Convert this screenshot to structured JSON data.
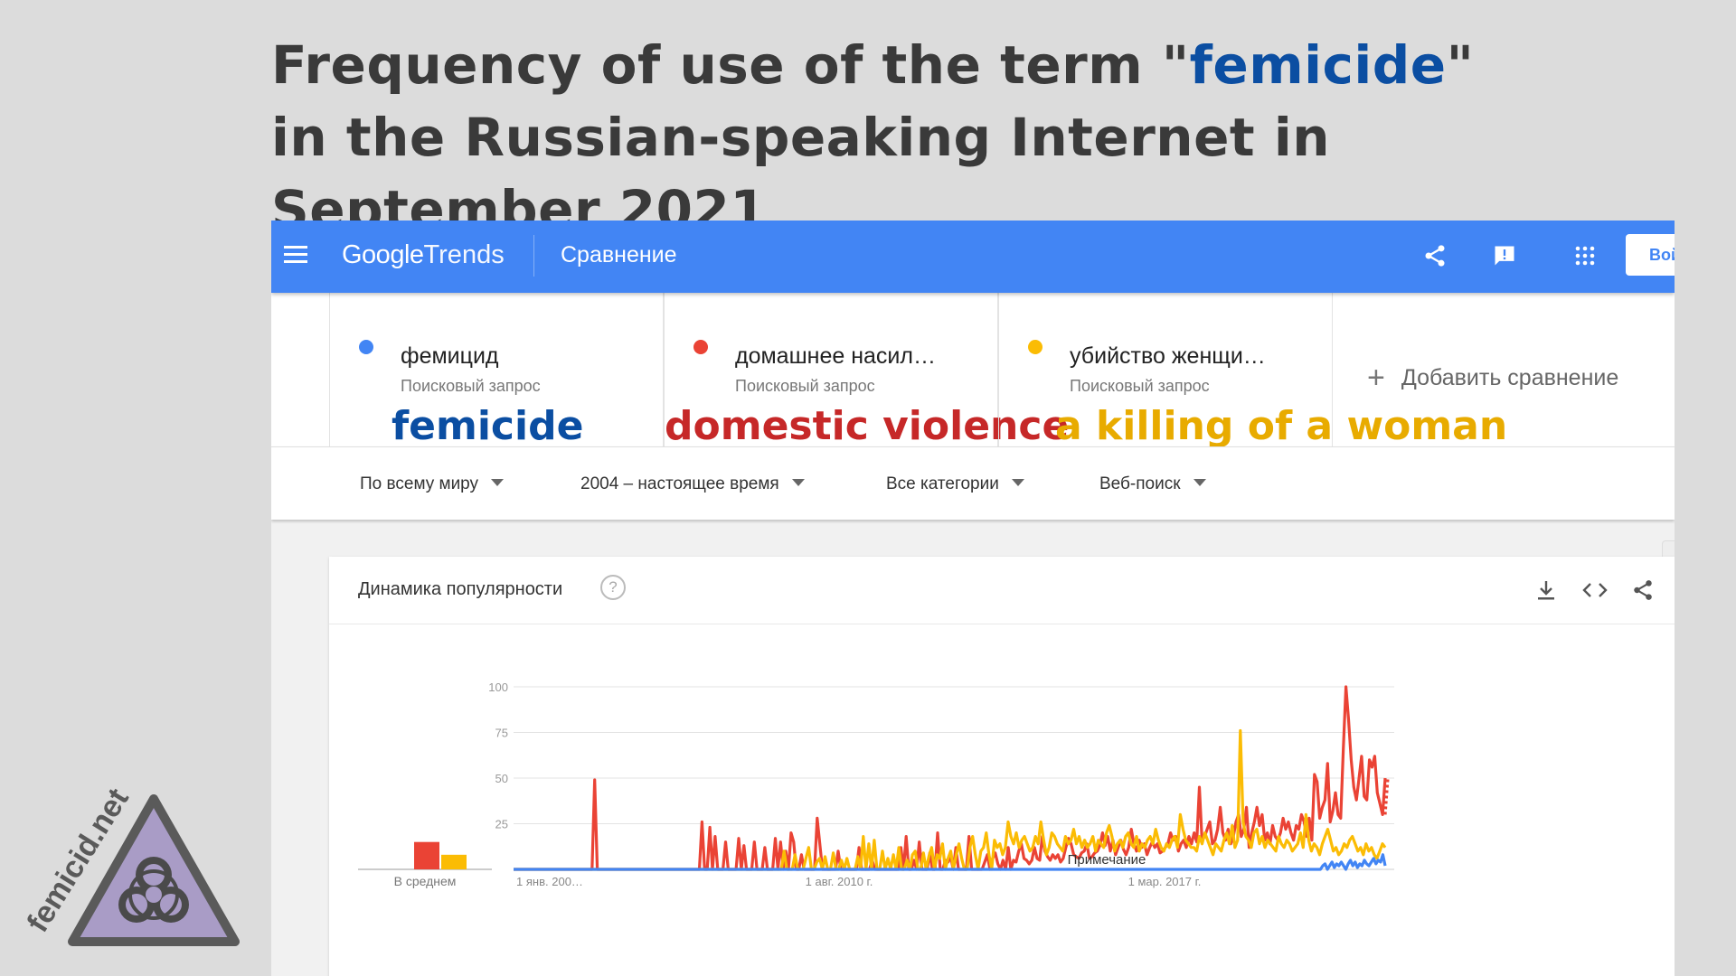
{
  "title": {
    "pre": "Frequency of use of the term \"",
    "highlight": "femicide",
    "post": "\" in the Russian-speaking Internet in September 2021"
  },
  "header": {
    "logo_google": "Google",
    "logo_trends": "Trends",
    "section": "Сравнение",
    "login_label": "Вой"
  },
  "terms": [
    {
      "name": "фемицид",
      "sub": "Поисковый запрос",
      "translation": "femicide",
      "color": "#4285f4",
      "tcolor": "#0b4ea2"
    },
    {
      "name": "домашнее насил…",
      "sub": "Поисковый запрос",
      "translation": "domestic violence",
      "color": "#ea4335",
      "tcolor": "#c62828"
    },
    {
      "name": "убийство женщи…",
      "sub": "Поисковый запрос",
      "translation": "a killing of a woman",
      "color": "#fbbc04",
      "tcolor": "#e8ab00"
    }
  ],
  "add_compare": "Добавить сравнение",
  "filters": {
    "region": "По всему миру",
    "period": "2004 – настоящее время",
    "category": "Все категории",
    "search_type": "Веб-поиск"
  },
  "card": {
    "title": "Динамика популярности",
    "help": "?"
  },
  "watermark": "femicid.net",
  "chart_data": {
    "type": "line",
    "x_tick_labels": [
      "1 янв. 200…",
      "1 авг. 2010 г.",
      "1 мар. 2017 г."
    ],
    "ylim": [
      0,
      100
    ],
    "y_ticks": [
      100,
      75,
      50,
      25
    ],
    "avg_label": "В среднем",
    "note_label": "Примечание",
    "averages": [
      {
        "name": "фемицид",
        "value": 0
      },
      {
        "name": "домашнее насилие",
        "value": 15
      },
      {
        "name": "убийство женщины",
        "value": 8
      }
    ],
    "series": [
      {
        "name": "домашнее насил…",
        "color": "#ea4335",
        "values": [
          0,
          0,
          0,
          0,
          0,
          0,
          0,
          0,
          0,
          0,
          0,
          0,
          0,
          0,
          0,
          0,
          0,
          0,
          0,
          0,
          0,
          0,
          0,
          0,
          0,
          0,
          0,
          0,
          0,
          0,
          0,
          49,
          0,
          0,
          0,
          0,
          0,
          0,
          0,
          0,
          0,
          0,
          0,
          0,
          0,
          0,
          0,
          0,
          0,
          0,
          0,
          0,
          0,
          0,
          0,
          0,
          0,
          0,
          0,
          0,
          0,
          0,
          0,
          0,
          0,
          0,
          0,
          0,
          0,
          0,
          0,
          0,
          26,
          0,
          0,
          23,
          0,
          18,
          0,
          0,
          0,
          15,
          0,
          0,
          0,
          0,
          17,
          0,
          13,
          0,
          0,
          0,
          15,
          0,
          0,
          0,
          12,
          0,
          0,
          0,
          17,
          0,
          15,
          0,
          10,
          0,
          20,
          15,
          0,
          0,
          8,
          0,
          0,
          0,
          0,
          0,
          28,
          14,
          0,
          0,
          0,
          0,
          0,
          0,
          10,
          0,
          0,
          0,
          0,
          0,
          0,
          0,
          12,
          0,
          0,
          0,
          0,
          5,
          0,
          0,
          0,
          0,
          0,
          0,
          0,
          0,
          0,
          0,
          12,
          0,
          18,
          0,
          0,
          5,
          0,
          15,
          0,
          0,
          0,
          9,
          0,
          0,
          20,
          0,
          0,
          5,
          4,
          7,
          0,
          12,
          0,
          0,
          0,
          0,
          18,
          0,
          0,
          0,
          0,
          0,
          4,
          8,
          0,
          6,
          9,
          3,
          0,
          5,
          0,
          12,
          0,
          5,
          4,
          10,
          14,
          6,
          5,
          3,
          5,
          12,
          6,
          5,
          18,
          10,
          7,
          5,
          8,
          6,
          8,
          4,
          6,
          12,
          17,
          14,
          8,
          7,
          6,
          9,
          10,
          14,
          6,
          7,
          9,
          10,
          13,
          20,
          13,
          18,
          10,
          16,
          8,
          12,
          16,
          11,
          8,
          12,
          22,
          14,
          10,
          16,
          12,
          14,
          8,
          12,
          15,
          12,
          14,
          9,
          10,
          12,
          14,
          20,
          16,
          18,
          10,
          14,
          16,
          12,
          18,
          14,
          20,
          15,
          45,
          16,
          18,
          22,
          26,
          14,
          16,
          22,
          34,
          20,
          16,
          22,
          14,
          18,
          26,
          30,
          18,
          22,
          34,
          12,
          20,
          26,
          34,
          24,
          30,
          16,
          20,
          14,
          24,
          18,
          16,
          20,
          28,
          22,
          26,
          20,
          16,
          24,
          22,
          30,
          26,
          18,
          28,
          16,
          52,
          48,
          28,
          34,
          38,
          58,
          26,
          32,
          42,
          30,
          28,
          66,
          100,
          82,
          60,
          45,
          38,
          50,
          62,
          40,
          38,
          60,
          56,
          62,
          42,
          36,
          30,
          50
        ],
        "dotted_tail": [
          30,
          50
        ]
      },
      {
        "name": "убийство женщи…",
        "color": "#fbbc04",
        "values": [
          0,
          0,
          0,
          0,
          0,
          0,
          0,
          0,
          0,
          0,
          0,
          0,
          0,
          0,
          0,
          0,
          0,
          0,
          0,
          0,
          0,
          0,
          0,
          0,
          0,
          0,
          0,
          0,
          0,
          0,
          0,
          0,
          0,
          0,
          0,
          0,
          0,
          0,
          0,
          0,
          0,
          0,
          0,
          0,
          0,
          0,
          0,
          0,
          0,
          0,
          0,
          0,
          0,
          0,
          0,
          0,
          0,
          0,
          0,
          0,
          0,
          0,
          0,
          0,
          0,
          0,
          0,
          0,
          0,
          0,
          0,
          0,
          0,
          0,
          0,
          0,
          0,
          0,
          0,
          0,
          0,
          0,
          0,
          0,
          0,
          0,
          0,
          0,
          0,
          0,
          0,
          0,
          0,
          0,
          0,
          0,
          0,
          0,
          0,
          10,
          0,
          0,
          0,
          8,
          0,
          0,
          0,
          6,
          12,
          0,
          0,
          4,
          6,
          0,
          7,
          0,
          0,
          9,
          0,
          0,
          5,
          0,
          6,
          0,
          0,
          0,
          7,
          0,
          18,
          0,
          14,
          0,
          16,
          0,
          0,
          10,
          0,
          6,
          0,
          8,
          0,
          12,
          0,
          0,
          5,
          0,
          8,
          10,
          0,
          0,
          9,
          0,
          7,
          12,
          0,
          8,
          6,
          14,
          0,
          6,
          10,
          0,
          8,
          14,
          6,
          0,
          0,
          12,
          18,
          8,
          0,
          10,
          12,
          20,
          8,
          0,
          16,
          12,
          14,
          8,
          12,
          26,
          18,
          14,
          20,
          12,
          16,
          18,
          14,
          10,
          12,
          18,
          14,
          26,
          16,
          8,
          12,
          20,
          18,
          14,
          12,
          10,
          18,
          14,
          16,
          22,
          14,
          18,
          12,
          16,
          12,
          14,
          18,
          10,
          16,
          14,
          12,
          20,
          24,
          18,
          10,
          14,
          16,
          12,
          18,
          20,
          14,
          12,
          18,
          10,
          14,
          12,
          16,
          18,
          14,
          22,
          16,
          12,
          10,
          14,
          12,
          16,
          18,
          12,
          30,
          22,
          16,
          14,
          12,
          12,
          10,
          18,
          14,
          20,
          16,
          12,
          8,
          14,
          12,
          10,
          16,
          20,
          14,
          24,
          12,
          16,
          76,
          26,
          18,
          16,
          12,
          20,
          22,
          14,
          18,
          12,
          16,
          14,
          12,
          10,
          18,
          14,
          12,
          16,
          14,
          10,
          12,
          14,
          20,
          12,
          30,
          16,
          10,
          14,
          12,
          8,
          14,
          18,
          22,
          16,
          10,
          12,
          8,
          10,
          14,
          12,
          16,
          18,
          14,
          10,
          12,
          8,
          14,
          10,
          12,
          8,
          6,
          10,
          14,
          12
        ],
        "dotted_tail": []
      },
      {
        "name": "фемицид",
        "color": "#4285f4",
        "values": [
          0,
          0,
          0,
          0,
          0,
          0,
          0,
          0,
          0,
          0,
          0,
          0,
          0,
          0,
          0,
          0,
          0,
          0,
          0,
          0,
          0,
          0,
          0,
          0,
          0,
          0,
          0,
          0,
          0,
          0,
          0,
          0,
          0,
          0,
          0,
          0,
          0,
          0,
          0,
          0,
          0,
          0,
          0,
          0,
          0,
          0,
          0,
          0,
          0,
          0,
          0,
          0,
          0,
          0,
          0,
          0,
          0,
          0,
          0,
          0,
          0,
          0,
          0,
          0,
          0,
          0,
          0,
          0,
          0,
          0,
          0,
          0,
          0,
          0,
          0,
          0,
          0,
          0,
          0,
          0,
          0,
          0,
          0,
          0,
          0,
          0,
          0,
          0,
          0,
          0,
          0,
          0,
          0,
          0,
          0,
          0,
          0,
          0,
          0,
          0,
          0,
          0,
          0,
          0,
          0,
          0,
          0,
          0,
          0,
          0,
          0,
          0,
          0,
          0,
          0,
          0,
          0,
          0,
          0,
          0,
          0,
          0,
          0,
          0,
          0,
          0,
          0,
          0,
          0,
          0,
          0,
          0,
          0,
          0,
          0,
          0,
          0,
          0,
          0,
          0,
          0,
          0,
          0,
          0,
          0,
          0,
          0,
          0,
          0,
          0,
          0,
          0,
          0,
          0,
          0,
          0,
          0,
          0,
          0,
          0,
          0,
          0,
          0,
          0,
          0,
          0,
          0,
          0,
          0,
          0,
          0,
          0,
          0,
          0,
          0,
          0,
          0,
          0,
          0,
          0,
          0,
          0,
          0,
          0,
          0,
          0,
          0,
          0,
          0,
          0,
          0,
          0,
          0,
          0,
          0,
          0,
          0,
          0,
          0,
          0,
          0,
          0,
          0,
          0,
          0,
          0,
          0,
          0,
          0,
          0,
          0,
          0,
          0,
          0,
          0,
          0,
          0,
          0,
          0,
          0,
          0,
          0,
          0,
          0,
          0,
          0,
          0,
          0,
          0,
          0,
          0,
          0,
          0,
          0,
          0,
          0,
          0,
          0,
          0,
          0,
          0,
          0,
          0,
          0,
          0,
          0,
          0,
          0,
          0,
          0,
          0,
          0,
          0,
          0,
          0,
          0,
          0,
          0,
          0,
          0,
          0,
          0,
          0,
          0,
          0,
          0,
          0,
          0,
          0,
          0,
          0,
          0,
          0,
          0,
          0,
          0,
          0,
          0,
          0,
          0,
          0,
          0,
          0,
          0,
          0,
          0,
          0,
          0,
          0,
          0,
          0,
          0,
          0,
          0,
          0,
          0,
          0,
          0,
          0,
          0,
          0,
          0,
          0,
          0,
          0,
          0,
          0,
          0,
          0,
          0,
          0,
          0,
          0,
          0,
          0,
          0,
          0,
          0,
          0,
          0,
          0,
          0,
          0,
          0,
          0,
          0,
          0,
          0,
          0,
          0,
          0,
          0,
          0,
          0,
          0,
          0,
          0,
          0,
          0,
          0,
          0,
          0,
          0,
          0,
          0,
          0,
          0,
          0,
          0,
          0,
          2,
          3,
          0,
          2,
          4,
          1,
          3,
          2,
          4,
          2,
          0,
          3,
          5,
          2,
          4,
          1,
          3,
          2,
          5,
          3,
          2,
          4,
          6,
          3,
          5,
          4,
          8,
          2
        ],
        "dotted_tail": []
      }
    ]
  }
}
